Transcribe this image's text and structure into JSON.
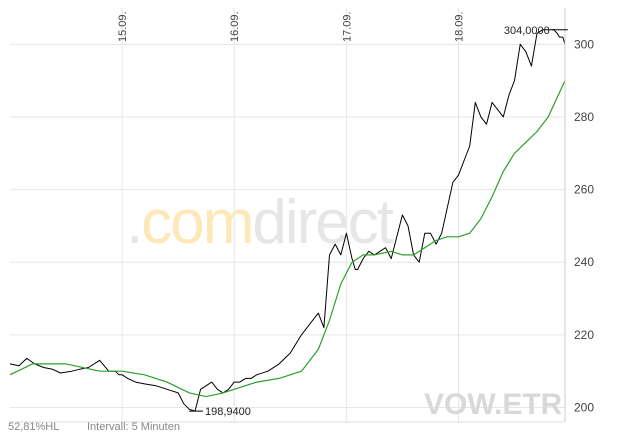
{
  "chart_data": {
    "type": "line",
    "y_ticks": [
      200,
      220,
      240,
      260,
      280,
      300
    ],
    "ylim": [
      196,
      310
    ],
    "x_dates": [
      "15.09.",
      "16.09.",
      "17.09.",
      "18.09."
    ],
    "x_ticks": [
      1,
      2,
      3,
      4
    ],
    "xlim": [
      0,
      4.95
    ],
    "grid": true,
    "series": [
      {
        "color": "#000000",
        "x": [
          0,
          0.08,
          0.15,
          0.22,
          0.3,
          0.38,
          0.45,
          0.55,
          0.62,
          0.7,
          0.8,
          0.88,
          0.94,
          0.97,
          1.0,
          1.05,
          1.12,
          1.2,
          1.3,
          1.4,
          1.5,
          1.55,
          1.6,
          1.65,
          1.7,
          1.75,
          1.8,
          1.85,
          1.9,
          1.95,
          2.0,
          2.05,
          2.1,
          2.15,
          2.2,
          2.3,
          2.4,
          2.5,
          2.6,
          2.7,
          2.75,
          2.8,
          2.85,
          2.9,
          2.95,
          3.0,
          3.05,
          3.08,
          3.1,
          3.15,
          3.2,
          3.25,
          3.3,
          3.35,
          3.4,
          3.45,
          3.5,
          3.55,
          3.6,
          3.65,
          3.7,
          3.75,
          3.8,
          3.85,
          3.9,
          3.95,
          4.0,
          4.05,
          4.1,
          4.15,
          4.2,
          4.25,
          4.3,
          4.35,
          4.4,
          4.45,
          4.5,
          4.55,
          4.6,
          4.65,
          4.7,
          4.75,
          4.8,
          4.85,
          4.88,
          4.9,
          4.93,
          4.95
        ],
        "y": [
          212,
          211.5,
          213.5,
          212,
          211,
          210.5,
          209.5,
          210,
          210.5,
          211,
          213,
          210,
          210,
          209,
          209,
          208,
          207,
          206.5,
          206,
          205,
          204,
          201,
          199.5,
          199,
          205,
          206,
          207,
          205,
          204,
          205,
          207,
          207,
          208,
          208,
          209,
          210,
          212,
          215,
          220,
          224,
          226,
          222,
          242,
          245,
          242,
          248,
          241,
          238,
          238,
          241,
          243,
          242,
          243,
          244,
          241,
          247,
          253,
          250,
          242,
          240,
          248,
          248,
          245,
          248,
          255,
          262,
          264,
          268,
          272,
          284,
          280,
          278,
          284,
          282,
          280,
          286,
          290,
          300,
          298,
          294,
          303,
          304,
          304,
          304,
          303,
          302,
          302,
          300
        ],
        "annotations": [
          {
            "text": "304,0000",
            "x": 4.85,
            "y": 304
          },
          {
            "text": "198,9400",
            "x": 1.65,
            "y": 199
          }
        ]
      },
      {
        "color": "#2ca02c",
        "x": [
          0,
          0.2,
          0.5,
          0.8,
          1.0,
          1.2,
          1.4,
          1.6,
          1.75,
          1.9,
          2.0,
          2.2,
          2.4,
          2.6,
          2.75,
          2.85,
          2.95,
          3.05,
          3.15,
          3.25,
          3.4,
          3.5,
          3.6,
          3.7,
          3.8,
          3.9,
          4.0,
          4.1,
          4.2,
          4.3,
          4.4,
          4.5,
          4.6,
          4.7,
          4.8,
          4.95
        ],
        "y": [
          209,
          212,
          212,
          210,
          210,
          209,
          207,
          204,
          203,
          204,
          205,
          207,
          208,
          210,
          216,
          224,
          234,
          240,
          242,
          242,
          243,
          242,
          242,
          244,
          246,
          247,
          247,
          248,
          252,
          258,
          265,
          270,
          273,
          276,
          280,
          290
        ]
      }
    ]
  },
  "watermark": {
    "dot": ".",
    "com": "com",
    "direct": "direct",
    "com_color": "#fde8b8",
    "direct_color": "#e6e6e6"
  },
  "symbol": "VOW.ETR",
  "footer": {
    "percent": "52,81%HL",
    "interval": "Intervall: 5 Minuten"
  }
}
